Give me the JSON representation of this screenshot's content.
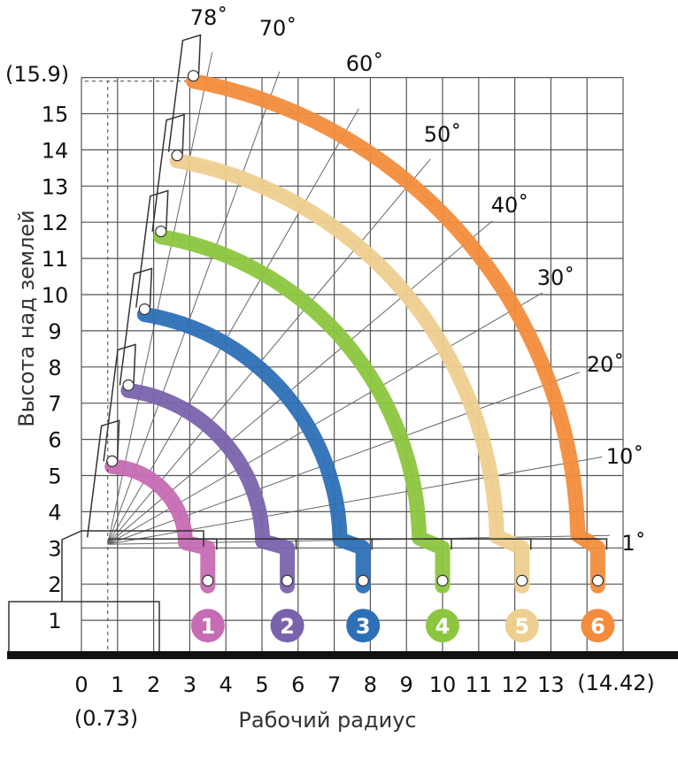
{
  "chart_data": {
    "type": "line",
    "xlabel": "Рабочий радиус",
    "ylabel": "Высота над землей",
    "xlim": [
      0,
      15
    ],
    "ylim": [
      0,
      16
    ],
    "x_ticks": [
      "0",
      "1",
      "2",
      "3",
      "4",
      "5",
      "6",
      "7",
      "8",
      "9",
      "10",
      "11",
      "12",
      "13"
    ],
    "y_ticks": [
      "1",
      "2",
      "3",
      "4",
      "5",
      "6",
      "7",
      "8",
      "9",
      "10",
      "11",
      "12",
      "13",
      "14",
      "15"
    ],
    "annotations": {
      "max_height_label": "(15.9)",
      "max_height": 15.9,
      "min_radius_label": "(0.73)",
      "min_radius": 0.73,
      "max_radius_label": "(14.42)",
      "max_radius": 14.42
    },
    "pivot": [
      0.73,
      3.1
    ],
    "boom_angles": [
      {
        "label": "78˚",
        "deg": 78
      },
      {
        "label": "70˚",
        "deg": 70
      },
      {
        "label": "60˚",
        "deg": 60
      },
      {
        "label": "50˚",
        "deg": 50
      },
      {
        "label": "40˚",
        "deg": 40
      },
      {
        "label": "30˚",
        "deg": 30
      },
      {
        "label": "20˚",
        "deg": 20
      },
      {
        "label": "10˚",
        "deg": 10
      },
      {
        "label": "1˚",
        "deg": 1
      }
    ],
    "series": [
      {
        "name": "1",
        "color": "#c66bb4",
        "start": [
          0.85,
          5.25
        ],
        "end_x": 3.5
      },
      {
        "name": "2",
        "color": "#7a63ad",
        "start": [
          1.3,
          7.35
        ],
        "end_x": 5.7
      },
      {
        "name": "3",
        "color": "#2d70b6",
        "start": [
          1.75,
          9.45
        ],
        "end_x": 7.8
      },
      {
        "name": "4",
        "color": "#8cc63f",
        "start": [
          2.2,
          11.6
        ],
        "end_x": 10.0
      },
      {
        "name": "5",
        "color": "#efcf8f",
        "start": [
          2.65,
          13.7
        ],
        "end_x": 12.2
      },
      {
        "name": "6",
        "color": "#f38c3c",
        "start": [
          3.1,
          15.9
        ],
        "end_x": 14.3
      }
    ]
  }
}
